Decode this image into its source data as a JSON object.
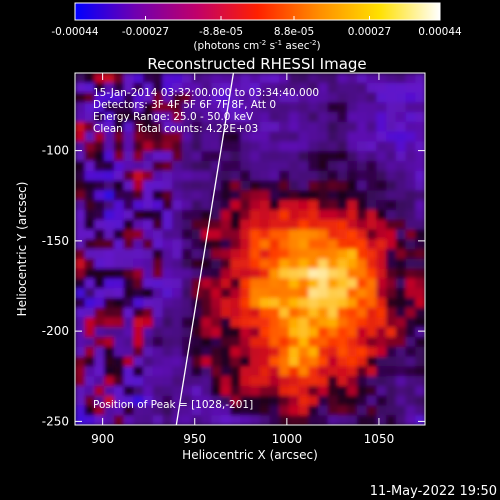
{
  "colorbar": {
    "tick_labels": [
      "-0.00044",
      "-0.00027",
      "-8.8e-05",
      "8.8e-05",
      "0.00027",
      "0.00044"
    ],
    "tick_values": [
      -0.00044,
      -0.00027,
      -8.8e-05,
      8.8e-05,
      0.00027,
      0.00044
    ],
    "range": [
      -0.00044,
      0.00044
    ],
    "units_prefix": "(photons cm",
    "units_exp1": "-2",
    "units_mid": " s",
    "units_exp2": "-1",
    "units_end": " asec",
    "units_exp3": "-2",
    "units_close": ")",
    "colors": [
      "#0000ff",
      "#7000b0",
      "#c0006a",
      "#ff2000",
      "#ff8c00",
      "#ffe000",
      "#ffffff"
    ]
  },
  "chart_data": {
    "type": "heatmap",
    "title": "Reconstructed RHESSI Image",
    "xlabel": "Heliocentric X (arcsec)",
    "ylabel": "Heliocentric Y (arcsec)",
    "xlim": [
      885,
      1075
    ],
    "ylim": [
      -252,
      -57
    ],
    "x_ticks": [
      900,
      950,
      1000,
      1050
    ],
    "x_tick_labels": [
      "900",
      "950",
      "1000",
      "1050"
    ],
    "y_ticks": [
      -100,
      -150,
      -200,
      -250
    ],
    "y_tick_labels": [
      "-100",
      "-150",
      "-200",
      "-250"
    ],
    "peak_position": [
      1028,
      -201
    ],
    "limb_line": [
      [
        940,
        -252
      ],
      [
        971,
        -57
      ]
    ],
    "grid": false
  },
  "annotations": {
    "time_range": "15-Jan-2014 03:32:00.000 to 03:34:40.000",
    "detectors": "Detectors: 3F 4F 5F 6F 7F 8F, Att 0",
    "energy_range": "Energy Range: 25.0 - 50.0 keV",
    "clean": "Clean    Total counts: 4.22E+03",
    "peak": "Position of Peak = [1028,-201]"
  },
  "footer": {
    "timestamp": "11-May-2022 19:50"
  }
}
